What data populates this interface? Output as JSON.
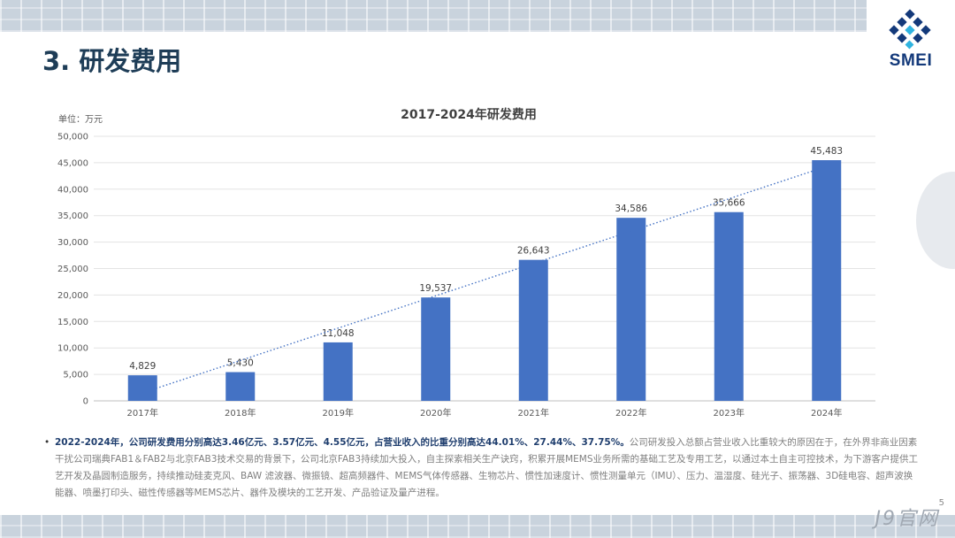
{
  "slide": {
    "title": "3. 研发费用",
    "brand": "SMEI",
    "page_number": "5",
    "watermark": "J9官网"
  },
  "colors": {
    "bar": "#4472c4",
    "trendline": "#4472c4",
    "title": "#1e3d57",
    "highlight": "#1f3e6e"
  },
  "chart_data": {
    "type": "bar",
    "title": "2017-2024年研发费用",
    "unit_label": "单位：万元",
    "xlabel": "",
    "ylabel": "",
    "categories": [
      "2017年",
      "2018年",
      "2019年",
      "2020年",
      "2021年",
      "2022年",
      "2023年",
      "2024年"
    ],
    "values": [
      4829,
      5430,
      11048,
      19537,
      26643,
      34586,
      35666,
      45483
    ],
    "value_labels": [
      "4,829",
      "5,430",
      "11,048",
      "19,537",
      "26,643",
      "34,586",
      "35,666",
      "45,483"
    ],
    "ylim": [
      0,
      50000
    ],
    "yticks": [
      0,
      5000,
      10000,
      15000,
      20000,
      25000,
      30000,
      35000,
      40000,
      45000,
      50000
    ],
    "ytick_labels": [
      "0",
      "5,000",
      "10,000",
      "15,000",
      "20,000",
      "25,000",
      "30,000",
      "35,000",
      "40,000",
      "45,000",
      "50,000"
    ],
    "trendline": "linear, dotted",
    "grid": true,
    "legend": "none"
  },
  "description": {
    "bullet": "•",
    "lead": "2022-2024年，公司研发费用分别高达3.46亿元、3.57亿元、4.55亿元，占营业收入的比重分别高达44.01%、27.44%、37.75%。",
    "body": "公司研发投入总额占营业收入比重较大的原因在于，在外界非商业因素干扰公司瑞典FAB1＆FAB2与北京FAB3技术交易的背景下，公司北京FAB3持续加大投入，自主探索相关生产诀窍，积累开展MEMS业务所需的基础工艺及专用工艺，以通过本土自主可控技术，为下游客户提供工艺开发及晶圆制造服务，持续推动硅麦克风、BAW 滤波器、微振镜、超高频器件、MEMS气体传感器、生物芯片、惯性加速度计、惯性测量单元（IMU）、压力、温湿度、硅光子、振荡器、3D硅电容、超声波换能器、喷墨打印头、磁性传感器等MEMS芯片、器件及模块的工艺开发、产品验证及量产进程。"
  }
}
